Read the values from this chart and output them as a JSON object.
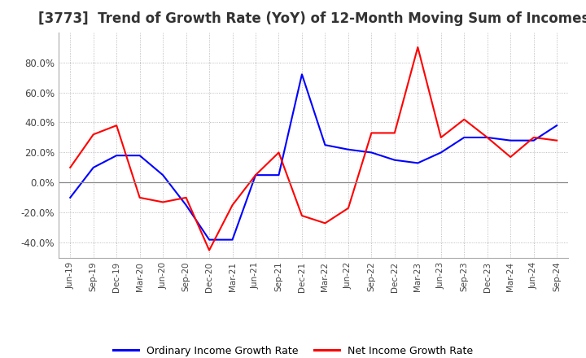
{
  "title": "[3773]  Trend of Growth Rate (YoY) of 12-Month Moving Sum of Incomes",
  "title_fontsize": 12,
  "ylim": [
    -50,
    100
  ],
  "yticks": [
    -40,
    -20,
    0,
    20,
    40,
    60,
    80
  ],
  "background_color": "#ffffff",
  "grid_color": "#aaaaaa",
  "ordinary_color": "#0000ff",
  "net_color": "#ff0000",
  "legend_labels": [
    "Ordinary Income Growth Rate",
    "Net Income Growth Rate"
  ],
  "x_labels": [
    "Jun-19",
    "Sep-19",
    "Dec-19",
    "Mar-20",
    "Jun-20",
    "Sep-20",
    "Dec-20",
    "Mar-21",
    "Jun-21",
    "Sep-21",
    "Dec-21",
    "Mar-22",
    "Jun-22",
    "Sep-22",
    "Dec-22",
    "Mar-23",
    "Jun-23",
    "Sep-23",
    "Dec-23",
    "Mar-24",
    "Jun-24",
    "Sep-24"
  ],
  "ordinary_income_growth": [
    -10,
    10,
    18,
    18,
    5,
    -15,
    -38,
    -38,
    5,
    5,
    72,
    25,
    22,
    20,
    15,
    13,
    20,
    30,
    30,
    28,
    28,
    38
  ],
  "net_income_growth": [
    10,
    32,
    38,
    -10,
    -13,
    -10,
    -45,
    -15,
    5,
    20,
    -22,
    -27,
    -17,
    33,
    33,
    90,
    30,
    42,
    30,
    17,
    30,
    28
  ]
}
